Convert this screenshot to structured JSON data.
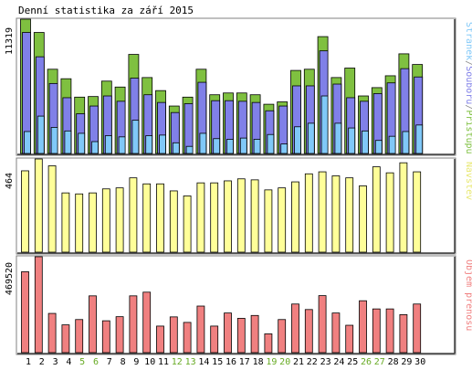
{
  "chart_data": {
    "type": "bar",
    "title": "Denní statistika za září 2015",
    "categories": [
      "1",
      "2",
      "3",
      "4",
      "5",
      "6",
      "7",
      "8",
      "9",
      "10",
      "11",
      "12",
      "13",
      "14",
      "15",
      "16",
      "17",
      "18",
      "19",
      "20",
      "21",
      "22",
      "23",
      "24",
      "25",
      "26",
      "27",
      "28",
      "29",
      "30"
    ],
    "weekend_days": [
      "5",
      "6",
      "12",
      "13",
      "19",
      "20",
      "26",
      "27"
    ],
    "colors": {
      "pristupu": "#7fc040",
      "souboru": "#8080e8",
      "stranek": "#80c8f8",
      "navstev": "#ffff99",
      "objem": "#f08080",
      "weekend_label": "#66aa22",
      "weekday_label": "#000000"
    },
    "panels": [
      {
        "id": "hits",
        "ylabel": "11319",
        "ymax": 11319,
        "legend": [
          {
            "text": "Stránek",
            "color": "#80c8f8"
          },
          {
            "text": "/",
            "color": "#888888"
          },
          {
            "text": "Souborů",
            "color": "#8080e8"
          },
          {
            "text": "/",
            "color": "#888888"
          },
          {
            "text": "Přístupů",
            "color": "#7fc040"
          }
        ],
        "series": [
          {
            "name": "Přístupů",
            "values": [
              11319,
              10200,
              7100,
              6300,
              4750,
              4800,
              6100,
              5600,
              8350,
              6400,
              5300,
              4000,
              4750,
              7100,
              4950,
              5100,
              5100,
              4950,
              4150,
              4350,
              7000,
              7100,
              9850,
              6400,
              7200,
              4850,
              5550,
              6550,
              8400,
              7500
            ]
          },
          {
            "name": "Souborů",
            "values": [
              10200,
              8150,
              5900,
              4700,
              3350,
              4000,
              4850,
              4400,
              6350,
              4950,
              4300,
              3450,
              4200,
              6000,
              4450,
              4450,
              4400,
              4300,
              3600,
              4000,
              5700,
              5700,
              8650,
              5850,
              4700,
              4400,
              5050,
              5950,
              7150,
              6450
            ]
          },
          {
            "name": "Stránek",
            "values": [
              1850,
              3150,
              2200,
              1900,
              1700,
              1000,
              1500,
              1400,
              2800,
              1500,
              1550,
              900,
              600,
              1700,
              1250,
              1200,
              1300,
              1200,
              1600,
              800,
              2250,
              2550,
              4850,
              2550,
              2150,
              1900,
              1100,
              1450,
              1850,
              2400
            ]
          }
        ]
      },
      {
        "id": "visits",
        "ylabel": "464",
        "ymax": 464,
        "legend": [
          {
            "text": "Návštěv",
            "color": "#e8e870"
          }
        ],
        "series": [
          {
            "name": "Návštěv",
            "values": [
              405,
              464,
              430,
              295,
              290,
              295,
              315,
              320,
              370,
              340,
              340,
              305,
              280,
              345,
              345,
              355,
              365,
              360,
              310,
              320,
              350,
              390,
              400,
              380,
              370,
              330,
              425,
              395,
              445,
              400
            ]
          }
        ]
      },
      {
        "id": "transfer",
        "ylabel": "469520",
        "ymax": 469520,
        "legend": [
          {
            "text": "Objem přenosu",
            "color": "#f08080"
          }
        ],
        "series": [
          {
            "name": "Objem přenosu",
            "values": [
              396000,
              469520,
              192000,
              136000,
              162000,
              278000,
              156000,
              176000,
              278000,
              296000,
              130000,
              175000,
              148000,
              228000,
              130000,
              194000,
              168000,
              182000,
              92000,
              162000,
              238000,
              211000,
              279000,
              194000,
              134000,
              254000,
              214000,
              214000,
              186000,
              238000
            ]
          }
        ]
      }
    ]
  }
}
